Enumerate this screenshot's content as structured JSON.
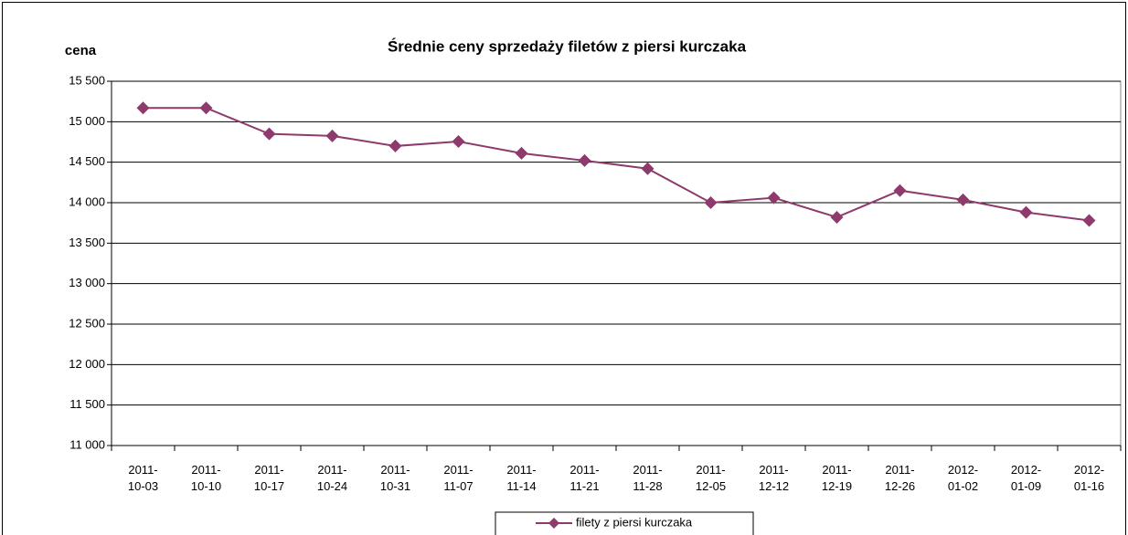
{
  "chart_data": {
    "type": "line",
    "title": "Średnie ceny sprzedaży filetów z piersi kurczaka",
    "y_label": "cena",
    "categories": [
      "2011-10-03",
      "2011-10-10",
      "2011-10-17",
      "2011-10-24",
      "2011-10-31",
      "2011-11-07",
      "2011-11-14",
      "2011-11-21",
      "2011-11-28",
      "2011-12-05",
      "2011-12-12",
      "2011-12-19",
      "2011-12-26",
      "2012-01-02",
      "2012-01-09",
      "2012-01-16"
    ],
    "series": [
      {
        "name": "filety z piersi kurczaka",
        "color": "#8e3a6c",
        "values": [
          15170,
          15170,
          14850,
          14825,
          14700,
          14755,
          14610,
          14520,
          14420,
          14000,
          14060,
          13820,
          14150,
          14035,
          13880,
          13780
        ]
      }
    ],
    "ylim": [
      11000,
      15500
    ],
    "yticks": [
      {
        "value": 11000,
        "label": "11 000"
      },
      {
        "value": 11500,
        "label": "11 500"
      },
      {
        "value": 12000,
        "label": "12 000"
      },
      {
        "value": 12500,
        "label": "12 500"
      },
      {
        "value": 13000,
        "label": "13 000"
      },
      {
        "value": 13500,
        "label": "13 500"
      },
      {
        "value": 14000,
        "label": "14 000"
      },
      {
        "value": 14500,
        "label": "14 500"
      },
      {
        "value": 15000,
        "label": "15 000"
      },
      {
        "value": 15500,
        "label": "15 500"
      }
    ],
    "grid": true,
    "legend": "bottom"
  }
}
